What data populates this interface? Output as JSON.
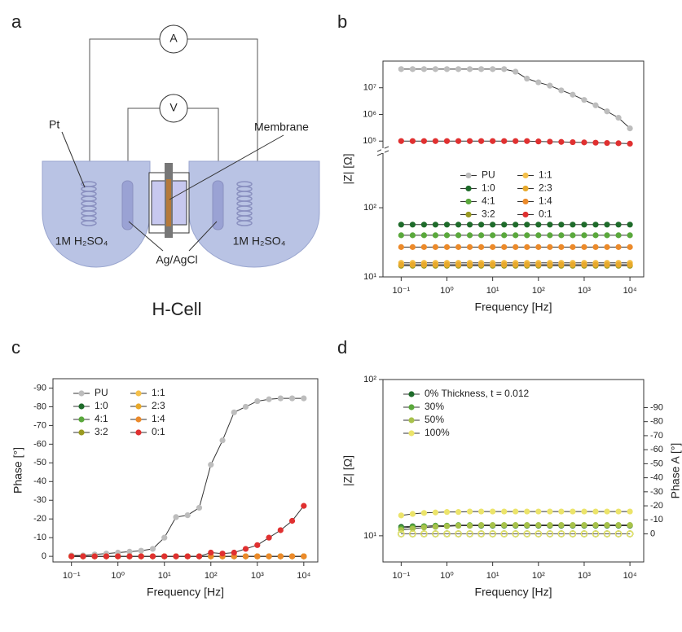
{
  "panels": [
    "a",
    "b",
    "c",
    "d"
  ],
  "diagram": {
    "ammeter": "A",
    "voltmeter": "V",
    "membrane": "Membrane",
    "electrode": "Pt",
    "electrolyte_left": "1M H₂SO₄",
    "electrolyte_right": "1M H₂SO₄",
    "reference": "Ag/AgCl",
    "caption": "H-Cell"
  },
  "chart_data": [
    {
      "type": "line",
      "x_label": "Frequency [Hz]",
      "y_label": "|Z| [Ω]",
      "xscale": "log",
      "yscale": "log",
      "xlim": [
        0.04,
        20000
      ],
      "ylim": [
        10,
        100000000
      ],
      "y_break": [
        600,
        58000
      ],
      "xticks": [
        {
          "value": 0.1,
          "label": "10⁻¹"
        },
        {
          "value": 1,
          "label": "10⁰"
        },
        {
          "value": 10,
          "label": "10¹"
        },
        {
          "value": 100,
          "label": "10²"
        },
        {
          "value": 1000,
          "label": "10³"
        },
        {
          "value": 10000,
          "label": "10⁴"
        }
      ],
      "yticks": [
        {
          "value": 10,
          "label": "10¹"
        },
        {
          "value": 100,
          "label": "10²"
        },
        {
          "value": 100000,
          "label": "10⁵"
        },
        {
          "value": 1000000,
          "label": "10⁶"
        },
        {
          "value": 10000000,
          "label": "10⁷"
        }
      ],
      "legend": "center",
      "x": [
        0.1,
        0.178,
        0.316,
        0.562,
        1,
        1.78,
        3.16,
        5.62,
        10,
        17.8,
        31.6,
        56.2,
        100,
        178,
        316,
        562,
        1000,
        1780,
        3160,
        5620,
        10000
      ],
      "series": [
        {
          "name": "PU",
          "color": "#bdbdbd",
          "values": [
            50000000,
            50000000,
            50000000,
            50000000,
            50000000,
            50000000,
            50000000,
            50000000,
            50000000,
            50000000,
            40000000,
            22000000,
            16000000,
            12000000,
            8000000,
            5500000,
            3500000,
            2200000,
            1300000,
            750000,
            300000
          ]
        },
        {
          "name": "1:0",
          "color": "#1e6b2a",
          "values": [
            57,
            57,
            57,
            57,
            57,
            57,
            57,
            57,
            57,
            57,
            57,
            57,
            57,
            57,
            57,
            57,
            57,
            57,
            57,
            57,
            57
          ]
        },
        {
          "name": "4:1",
          "color": "#5aa83c",
          "values": [
            40,
            40,
            40,
            40,
            40,
            40,
            40,
            40,
            40,
            40,
            40,
            40,
            40,
            40,
            40,
            40,
            40,
            40,
            40,
            40,
            40
          ]
        },
        {
          "name": "3:2",
          "color": "#9a9a20",
          "values": [
            14.5,
            14.5,
            14.5,
            14.5,
            14.5,
            14.5,
            14.5,
            14.5,
            14.5,
            14.5,
            14.5,
            14.5,
            14.5,
            14.5,
            14.5,
            14.5,
            14.5,
            14.5,
            14.5,
            14.5,
            14.5
          ]
        },
        {
          "name": "1:1",
          "color": "#f5c04a",
          "values": [
            16,
            16,
            16,
            16,
            16,
            16,
            16,
            16,
            16,
            16,
            16,
            16,
            16,
            16,
            16,
            16,
            16,
            16,
            16,
            16,
            16
          ]
        },
        {
          "name": "2:3",
          "color": "#e8a92b",
          "values": [
            15,
            15,
            15,
            15,
            15,
            15,
            15,
            15,
            15,
            15,
            15,
            15,
            15,
            15,
            15,
            15,
            15,
            15,
            15,
            15,
            15
          ]
        },
        {
          "name": "1:4",
          "color": "#ec8a2a",
          "values": [
            27,
            27,
            27,
            27,
            27,
            27,
            27,
            27,
            27,
            27,
            27,
            27,
            27,
            27,
            27,
            27,
            27,
            27,
            27,
            27,
            27
          ]
        },
        {
          "name": "0:1",
          "color": "#e03030",
          "values": [
            100000,
            100000,
            100000,
            100000,
            100000,
            100000,
            100000,
            100000,
            100000,
            100000,
            100000,
            100000,
            97000,
            95000,
            93000,
            91000,
            89000,
            87000,
            85000,
            83000,
            80000
          ]
        }
      ]
    },
    {
      "type": "line",
      "x_label": "Frequency [Hz]",
      "y_label": "Phase [°]",
      "xscale": "log",
      "xlim": [
        0.04,
        20000
      ],
      "ylim": [
        3,
        -95
      ],
      "xticks": [
        {
          "value": 0.1,
          "label": "10⁻¹"
        },
        {
          "value": 1,
          "label": "10⁰"
        },
        {
          "value": 10,
          "label": "10¹"
        },
        {
          "value": 100,
          "label": "10²"
        },
        {
          "value": 1000,
          "label": "10³"
        },
        {
          "value": 10000,
          "label": "10⁴"
        }
      ],
      "yticks": [
        0,
        -10,
        -20,
        -30,
        -40,
        -50,
        -60,
        -70,
        -80,
        -90
      ],
      "legend": "upper left",
      "x": [
        0.1,
        0.178,
        0.316,
        0.562,
        1,
        1.78,
        3.16,
        5.62,
        10,
        17.8,
        31.6,
        56.2,
        100,
        178,
        316,
        562,
        1000,
        1780,
        3160,
        5620,
        10000
      ],
      "series": [
        {
          "name": "PU",
          "color": "#bdbdbd",
          "values": [
            -0.5,
            -0.5,
            -1,
            -1.5,
            -2,
            -2.5,
            -3,
            -4,
            -10,
            -21,
            -22,
            -26,
            -49,
            -62,
            -77,
            -80,
            -83,
            -84,
            -84.5,
            -84.5,
            -84.5
          ]
        },
        {
          "name": "1:0",
          "color": "#1e6b2a",
          "values": [
            0,
            0,
            0,
            0,
            0,
            0,
            0,
            0,
            0,
            0,
            0,
            0,
            0,
            0,
            0,
            0,
            0,
            0,
            0,
            0,
            0
          ]
        },
        {
          "name": "4:1",
          "color": "#5aa83c",
          "values": [
            0,
            0,
            0,
            0,
            0,
            0,
            0,
            0,
            0,
            0,
            0,
            0,
            0,
            0,
            0,
            0,
            0,
            0,
            0,
            0,
            0
          ]
        },
        {
          "name": "3:2",
          "color": "#9a9a20",
          "values": [
            0,
            0,
            0,
            0,
            0,
            0,
            0,
            0,
            0,
            0,
            0,
            0,
            0,
            0,
            0,
            0,
            0,
            0,
            0,
            0,
            0
          ]
        },
        {
          "name": "1:1",
          "color": "#f5c04a",
          "values": [
            0,
            0,
            0,
            0,
            0,
            0,
            0,
            0,
            0,
            0,
            0,
            0,
            0,
            0,
            0,
            0,
            0,
            0,
            0,
            0,
            0
          ]
        },
        {
          "name": "2:3",
          "color": "#e8a92b",
          "values": [
            0,
            0,
            0,
            0,
            0,
            0,
            0,
            0,
            0,
            0,
            0,
            0,
            0,
            0,
            0,
            0,
            0,
            0,
            0,
            0,
            0
          ]
        },
        {
          "name": "1:4",
          "color": "#ec8a2a",
          "values": [
            0,
            0,
            0,
            0,
            0,
            0,
            0,
            0,
            0,
            0,
            0,
            0,
            0,
            0,
            0,
            0,
            0,
            0,
            0,
            0,
            0
          ]
        },
        {
          "name": "0:1",
          "color": "#e03030",
          "values": [
            0,
            0,
            0,
            0,
            0,
            0,
            0,
            0,
            0,
            0,
            0,
            0,
            -2,
            -1.5,
            -2,
            -4,
            -6,
            -10,
            -14,
            -19,
            -27
          ]
        }
      ]
    },
    {
      "type": "line",
      "x_label": "Frequency [Hz]",
      "y_label": "|Z| [Ω]",
      "y2_label": "Phase A [°]",
      "xscale": "log",
      "yscale": "log",
      "xlim": [
        0.04,
        20000
      ],
      "ylim": [
        6.8,
        100
      ],
      "y2lim": [
        20,
        -110
      ],
      "xticks": [
        {
          "value": 0.1,
          "label": "10⁻¹"
        },
        {
          "value": 1,
          "label": "10⁰"
        },
        {
          "value": 10,
          "label": "10¹"
        },
        {
          "value": 100,
          "label": "10²"
        },
        {
          "value": 1000,
          "label": "10³"
        },
        {
          "value": 10000,
          "label": "10⁴"
        }
      ],
      "yticks": [
        {
          "value": 10,
          "label": "10¹"
        },
        {
          "value": 100,
          "label": "10²"
        }
      ],
      "y2ticks": [
        0,
        -10,
        -20,
        -30,
        -40,
        -50,
        -60,
        -70,
        -80,
        -90
      ],
      "legend": "upper left",
      "x": [
        0.1,
        0.178,
        0.316,
        0.562,
        1,
        1.78,
        3.16,
        5.62,
        10,
        17.8,
        31.6,
        56.2,
        100,
        178,
        316,
        562,
        1000,
        1780,
        3160,
        5620,
        10000
      ],
      "series": [
        {
          "name": "0% Thickness, t = 0.012",
          "color": "#1e6b2a",
          "values": [
            11.4,
            11.5,
            11.5,
            11.6,
            11.6,
            11.6,
            11.6,
            11.6,
            11.6,
            11.6,
            11.6,
            11.6,
            11.6,
            11.6,
            11.6,
            11.6,
            11.6,
            11.6,
            11.6,
            11.6,
            11.6
          ],
          "phase_values": [
            0,
            0,
            0,
            0,
            0,
            0,
            0,
            0,
            0,
            0,
            0,
            0,
            0,
            0,
            0,
            0,
            0,
            0,
            0,
            0,
            0
          ]
        },
        {
          "name": "30%",
          "color": "#5aa83c",
          "values": [
            11.2,
            11.4,
            11.5,
            11.6,
            11.6,
            11.7,
            11.7,
            11.7,
            11.7,
            11.7,
            11.7,
            11.7,
            11.7,
            11.7,
            11.7,
            11.7,
            11.7,
            11.7,
            11.7,
            11.7,
            11.7
          ],
          "phase_values": [
            0,
            0,
            0,
            0,
            0,
            0,
            0,
            0,
            0,
            0,
            0,
            0,
            0,
            0,
            0,
            0,
            0,
            0,
            0,
            0,
            0
          ]
        },
        {
          "name": "50%",
          "color": "#a8c24a",
          "values": [
            10.9,
            11.1,
            11.3,
            11.4,
            11.5,
            11.6,
            11.6,
            11.7,
            11.7,
            11.7,
            11.7,
            11.7,
            11.7,
            11.7,
            11.7,
            11.7,
            11.7,
            11.7,
            11.7,
            11.7,
            11.7
          ],
          "phase_values": [
            0,
            0,
            0,
            0,
            0,
            0,
            0,
            0,
            0,
            0,
            0,
            0,
            0,
            0,
            0,
            0,
            0,
            0,
            0,
            0,
            0
          ]
        },
        {
          "name": "100%",
          "color": "#ece46a",
          "values": [
            13.5,
            13.8,
            14,
            14.1,
            14.2,
            14.2,
            14.3,
            14.3,
            14.3,
            14.3,
            14.3,
            14.3,
            14.3,
            14.3,
            14.3,
            14.3,
            14.3,
            14.3,
            14.3,
            14.3,
            14.3
          ],
          "phase_values": [
            0,
            0,
            0,
            0,
            0,
            0,
            0,
            0,
            0,
            0,
            0,
            0,
            0,
            0,
            0,
            0,
            0,
            0,
            0,
            0,
            0
          ]
        }
      ]
    }
  ]
}
